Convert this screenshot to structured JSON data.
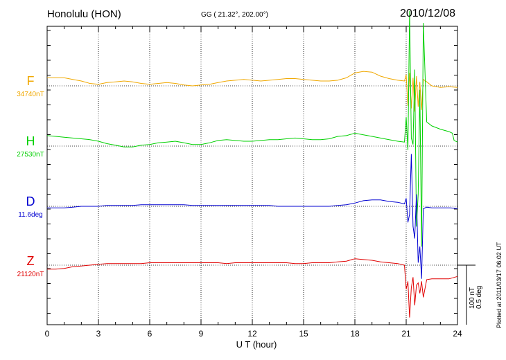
{
  "header": {
    "station": "Honolulu (HON)",
    "coords": "GG ( 21.32°, 202.00°)",
    "date": "2010/12/08"
  },
  "footer": {
    "plotted": "Plotted at 2011/03/17 06:02 UT",
    "scale_line1": "100 nT",
    "scale_line2": "0.5 deg"
  },
  "chart_data": {
    "type": "line",
    "xlabel": "U T (hour)",
    "xlim": [
      0,
      24
    ],
    "xticks": [
      0,
      3,
      6,
      9,
      12,
      15,
      18,
      21,
      24
    ],
    "xtick_labels": [
      "0",
      "3",
      "6",
      "9",
      "12",
      "15",
      "18",
      "21",
      "24"
    ],
    "grid": "dotted vertical",
    "series": [
      {
        "name": "F",
        "baseline": "34740nT",
        "color": "#f0a800",
        "x": [
          0,
          0.5,
          1,
          1.5,
          2,
          2.5,
          3,
          3.5,
          4,
          4.5,
          5,
          5.5,
          6,
          6.5,
          7,
          7.5,
          8,
          8.5,
          9,
          9.5,
          10,
          10.5,
          11,
          11.5,
          12,
          12.5,
          13,
          13.5,
          14,
          14.5,
          15,
          15.5,
          16,
          16.5,
          17,
          17.5,
          18,
          18.5,
          19,
          19.5,
          20,
          20.5,
          20.9,
          21,
          21.1,
          21.2,
          21.3,
          21.4,
          21.5,
          21.6,
          21.7,
          21.8,
          21.9,
          22,
          22.2,
          22.5,
          23,
          23.5,
          24
        ],
        "y": [
          10,
          10,
          10,
          8,
          6,
          3,
          2,
          4,
          5,
          6,
          5,
          3,
          2,
          3,
          4,
          3,
          1,
          0,
          1,
          2,
          4,
          6,
          7,
          8,
          7,
          6,
          7,
          8,
          9,
          9,
          8,
          7,
          6,
          6,
          7,
          10,
          16,
          18,
          17,
          12,
          9,
          7,
          6,
          14,
          -25,
          16,
          -28,
          10,
          -32,
          12,
          -26,
          5,
          -30,
          8,
          5,
          0,
          -2,
          -1,
          -2
        ]
      },
      {
        "name": "H",
        "baseline": "27530nT",
        "color": "#00d000",
        "x": [
          0,
          0.5,
          1,
          1.5,
          2,
          2.5,
          3,
          3.5,
          4,
          4.5,
          5,
          5.5,
          6,
          6.5,
          7,
          7.5,
          8,
          8.5,
          9,
          9.5,
          10,
          10.5,
          11,
          11.5,
          12,
          12.5,
          13,
          13.5,
          14,
          14.5,
          15,
          15.5,
          16,
          16.5,
          17,
          17.5,
          18,
          18.5,
          19,
          19.5,
          20,
          20.5,
          20.9,
          21,
          21.1,
          21.2,
          21.3,
          21.4,
          21.5,
          21.6,
          21.7,
          21.8,
          21.9,
          22,
          22.2,
          22.5,
          23,
          23.5,
          23.7,
          23.8,
          24
        ],
        "y": [
          13,
          12,
          11,
          10,
          9,
          8,
          6,
          3,
          1,
          -1,
          -1,
          1,
          2,
          4,
          5,
          6,
          4,
          2,
          2,
          4,
          7,
          8,
          7,
          6,
          6,
          7,
          8,
          8,
          9,
          10,
          9,
          8,
          8,
          9,
          12,
          13,
          16,
          14,
          12,
          10,
          8,
          6,
          5,
          36,
          -5,
          168,
          10,
          2,
          95,
          -100,
          -60,
          70,
          -125,
          153,
          30,
          25,
          21,
          18,
          16,
          7,
          5
        ]
      },
      {
        "name": "D",
        "baseline": "11.6deg",
        "color": "#0000d0",
        "x": [
          0,
          0.5,
          1,
          1.5,
          2,
          2.5,
          3,
          3.5,
          4,
          4.5,
          5,
          5.5,
          6,
          6.5,
          7,
          7.5,
          8,
          8.5,
          9,
          9.5,
          10,
          10.5,
          11,
          11.5,
          12,
          12.5,
          13,
          13.5,
          14,
          14.5,
          15,
          15.5,
          16,
          16.5,
          17,
          17.5,
          18,
          18.5,
          19,
          19.5,
          20,
          20.5,
          20.9,
          21,
          21.1,
          21.2,
          21.3,
          21.4,
          21.5,
          21.6,
          21.7,
          21.8,
          21.9,
          22,
          22.2,
          22.5,
          23,
          23.5,
          23.6,
          24
        ],
        "y": [
          -2,
          -2,
          -2,
          -1,
          0,
          0,
          0,
          1,
          1,
          1,
          1,
          2,
          2,
          2,
          2,
          2,
          2,
          1,
          1,
          1,
          1,
          1,
          1,
          1,
          1,
          1,
          1,
          0,
          0,
          0,
          0,
          0,
          0,
          0,
          1,
          2,
          4,
          7,
          8,
          8,
          6,
          5,
          3,
          10,
          -20,
          -10,
          65,
          -25,
          -40,
          15,
          -70,
          -50,
          -90,
          -3,
          -1,
          -2,
          -2,
          -2,
          -2,
          -3
        ]
      },
      {
        "name": "Z",
        "baseline": "21120nT",
        "color": "#e00000",
        "x": [
          0,
          0.5,
          1,
          1.5,
          2,
          2.5,
          3,
          3.5,
          4,
          4.5,
          5,
          5.5,
          6,
          6.5,
          7,
          7.5,
          8,
          8.5,
          9,
          9.5,
          10,
          10.5,
          11,
          11.5,
          12,
          12.5,
          13,
          13.5,
          14,
          14.5,
          15,
          15.5,
          16,
          16.5,
          17,
          17.5,
          18,
          18.5,
          19,
          19.5,
          20,
          20.5,
          20.9,
          21,
          21.1,
          21.2,
          21.3,
          21.4,
          21.5,
          21.6,
          21.7,
          21.8,
          21.9,
          22,
          22.2,
          22.5,
          23,
          23.5,
          24
        ],
        "y": [
          -5,
          -5,
          -4,
          -2,
          -1,
          0,
          1,
          2,
          2,
          2,
          2,
          2,
          3,
          3,
          3,
          3,
          3,
          3,
          3,
          3,
          3,
          2,
          3,
          3,
          3,
          3,
          3,
          3,
          3,
          2,
          2,
          3,
          3,
          3,
          4,
          5,
          8,
          7,
          6,
          4,
          3,
          2,
          0,
          -30,
          -20,
          -65,
          -28,
          -15,
          -50,
          -25,
          -22,
          -35,
          -20,
          -40,
          -18,
          -17,
          -17,
          -17,
          -14
        ]
      }
    ]
  }
}
